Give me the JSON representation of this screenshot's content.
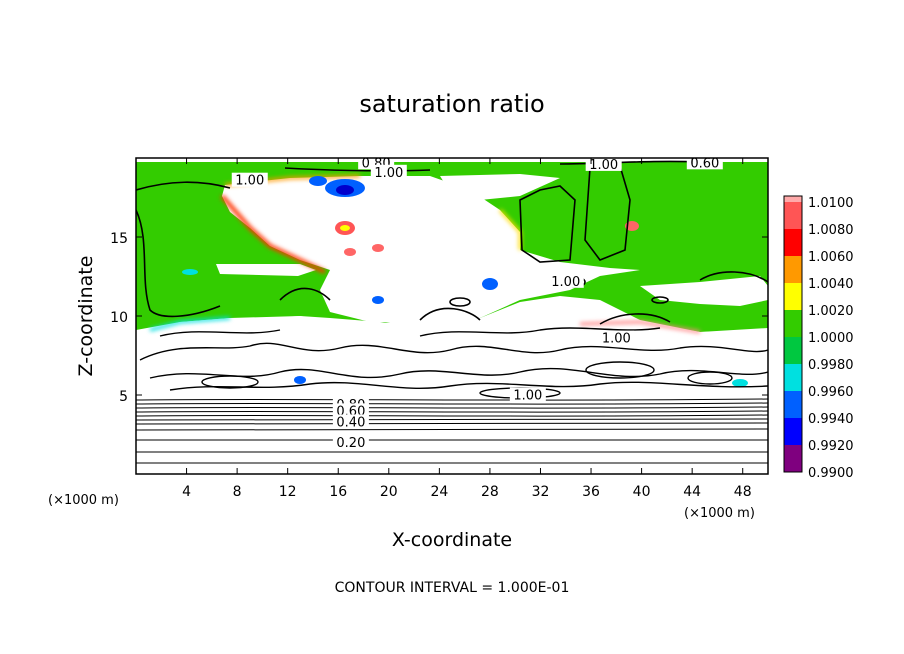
{
  "chart_data": {
    "type": "heatmap",
    "title": "saturation ratio",
    "xlabel": "X-coordinate",
    "ylabel": "Z-coordinate",
    "x_unit": "(×1000 m)",
    "z_unit": "(×1000 m)",
    "xlim": [
      0,
      50
    ],
    "ylim": [
      0,
      20
    ],
    "x_ticks": [
      4,
      8,
      12,
      16,
      20,
      24,
      28,
      32,
      36,
      40,
      44,
      48
    ],
    "y_ticks": [
      5,
      10,
      15
    ],
    "footer": "CONTOUR INTERVAL = 1.000E-01",
    "colorbar": {
      "levels": [
        "0.9900",
        "0.9920",
        "0.9940",
        "0.9960",
        "0.9980",
        "1.0000",
        "1.0020",
        "1.0040",
        "1.0060",
        "1.0080",
        "1.0100"
      ],
      "colors": [
        "#7f007f",
        "#0000ff",
        "#0060ff",
        "#00e0e0",
        "#00c840",
        "#33cc00",
        "#ffff00",
        "#ff9900",
        "#ff0000",
        "#ff5555",
        "#ffaaaa"
      ]
    },
    "contour_labels": [
      {
        "text": "0.80",
        "x": 19,
        "z": 19.6
      },
      {
        "text": "1.00",
        "x": 9,
        "z": 18.5
      },
      {
        "text": "1.00",
        "x": 20,
        "z": 19.0
      },
      {
        "text": "1.00",
        "x": 37,
        "z": 19.5
      },
      {
        "text": "0.60",
        "x": 45,
        "z": 19.6
      },
      {
        "text": "1.00",
        "x": 34,
        "z": 12.1
      },
      {
        "text": "1.00",
        "x": 38,
        "z": 8.5
      },
      {
        "text": "1.00",
        "x": 31,
        "z": 4.9
      },
      {
        "text": "0.80",
        "x": 17,
        "z": 4.3
      },
      {
        "text": "0.60",
        "x": 17,
        "z": 3.9
      },
      {
        "text": "0.40",
        "x": 17,
        "z": 3.2
      },
      {
        "text": "0.20",
        "x": 17,
        "z": 1.9
      }
    ]
  }
}
